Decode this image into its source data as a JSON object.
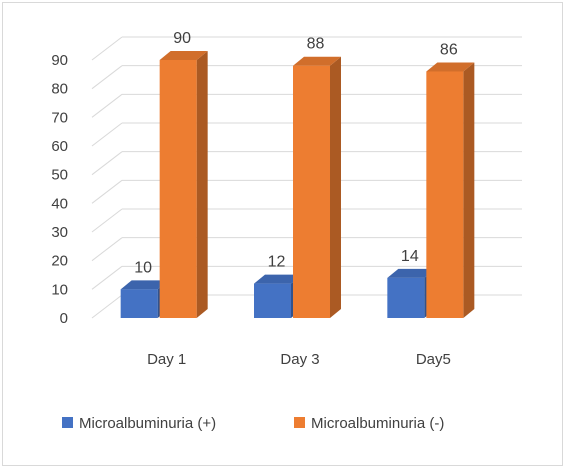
{
  "chart_data": {
    "type": "bar",
    "style": "3d-clustered-column",
    "categories": [
      "Day 1",
      "Day 3",
      "Day5"
    ],
    "series": [
      {
        "name": "Microalbuminuria (+)",
        "values": [
          10,
          12,
          14
        ],
        "color": "#4472C4"
      },
      {
        "name": "Microalbuminuria (-)",
        "values": [
          90,
          88,
          86
        ],
        "color": "#ED7D31"
      }
    ],
    "ylim": [
      0,
      90
    ],
    "yticks": [
      0,
      10,
      20,
      30,
      40,
      50,
      60,
      70,
      80,
      90
    ],
    "grid": true,
    "legend": "bottom",
    "data_labels": true
  }
}
